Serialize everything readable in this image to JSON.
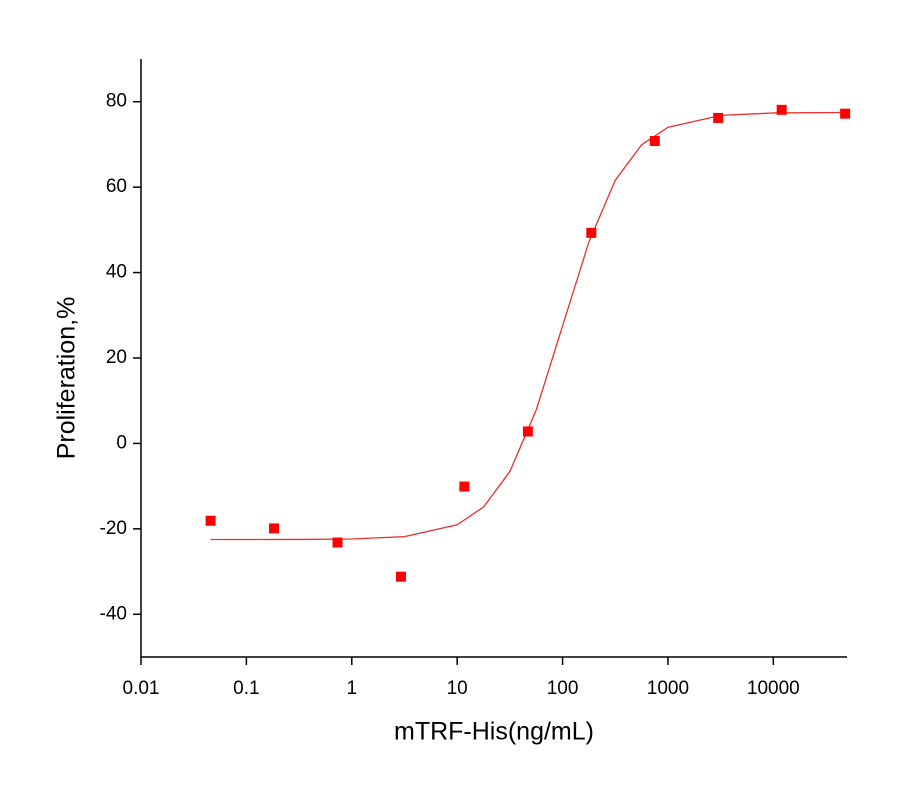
{
  "chart_data": {
    "type": "scatter",
    "x_label": "mTRF-His(ng/mL)",
    "y_label": "Proliferation,%",
    "xscale": "log",
    "xlim": [
      0.01,
      50000
    ],
    "xticks": [
      0.01,
      0.1,
      1,
      10,
      100,
      1000,
      10000
    ],
    "ylim": [
      -50,
      90
    ],
    "yticks": [
      -40,
      -20,
      0,
      20,
      40,
      60,
      80
    ],
    "grid": false,
    "series": [
      {
        "type": "scatter",
        "color": "#ff0000",
        "x": [
          0.0458,
          0.183,
          0.732,
          2.93,
          11.7,
          46.9,
          187.5,
          750,
          3000,
          12000,
          48000
        ],
        "values": [
          -18.1,
          -19.9,
          -23.2,
          -31.2,
          -10.1,
          2.8,
          49.3,
          70.8,
          76.2,
          78.1,
          77.2
        ]
      },
      {
        "type": "line",
        "color": "#e8302c",
        "x": [
          0.0458,
          0.1,
          0.316,
          1,
          3.16,
          10,
          17.8,
          31.6,
          56.2,
          100,
          178,
          316,
          562,
          1000,
          3162,
          10000,
          48000
        ],
        "values": [
          -22.5,
          -22.5,
          -22.48,
          -22.37,
          -21.82,
          -19.04,
          -14.88,
          -6.6,
          7.8,
          27.5,
          47.2,
          61.6,
          69.9,
          74.0,
          76.8,
          77.37,
          77.48
        ]
      }
    ]
  }
}
